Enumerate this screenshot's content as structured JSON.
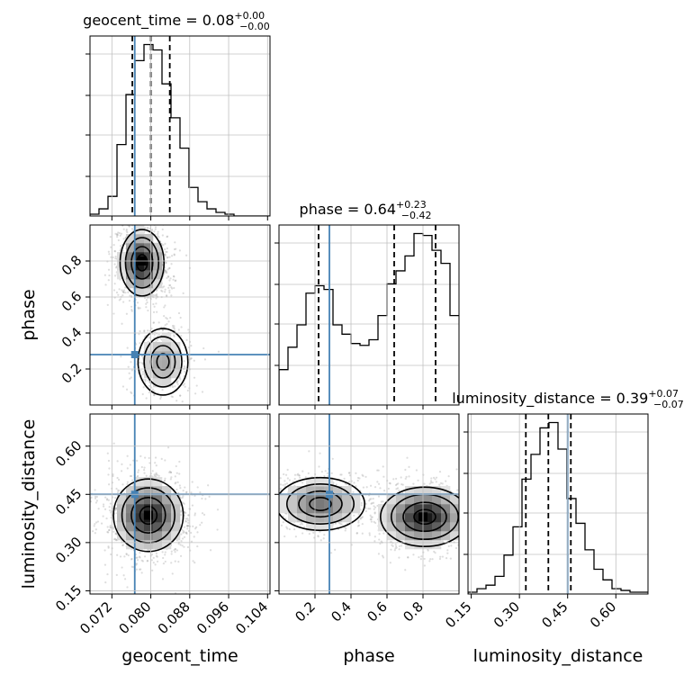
{
  "chart_data": {
    "type": "corner",
    "parameters": [
      {
        "key": "geocent_time",
        "label": "geocent_time",
        "range": [
          0.0675,
          0.1045
        ],
        "ticks": [
          "0.072",
          "0.080",
          "0.088",
          "0.096",
          "0.104"
        ],
        "tick_values": [
          0.072,
          0.08,
          0.088,
          0.096,
          0.104
        ],
        "truth": 0.0767,
        "quantiles": [
          0.0762,
          0.08,
          0.0839
        ]
      },
      {
        "key": "phase",
        "label": "phase",
        "range": [
          0.0,
          1.0
        ],
        "ticks": [
          "0.2",
          "0.4",
          "0.6",
          "0.8"
        ],
        "tick_values": [
          0.2,
          0.4,
          0.6,
          0.8
        ],
        "truth": 0.28,
        "quantiles": [
          0.22,
          0.64,
          0.87
        ]
      },
      {
        "key": "luminosity_distance",
        "label": "luminosity_distance",
        "range": [
          0.14,
          0.7
        ],
        "ticks": [
          "0.15",
          "0.30",
          "0.45",
          "0.60"
        ],
        "tick_values": [
          0.15,
          0.3,
          0.45,
          0.6
        ],
        "truth": 0.45,
        "quantiles": [
          0.32,
          0.39,
          0.46
        ]
      }
    ],
    "titles": [
      {
        "param": "geocent_time",
        "main": "geocent_time = 0.08",
        "sup": "+0.00",
        "sub": "−0.00"
      },
      {
        "param": "phase",
        "main": "phase = 0.64",
        "sup": "+0.23",
        "sub": "−0.42"
      },
      {
        "param": "luminosity_distance",
        "main": "luminosity_distance = 0.39",
        "sup": "+0.07",
        "sub": "−0.07"
      }
    ],
    "histograms": {
      "geocent_time": {
        "edges_start": 0.0675,
        "bin_width": 0.00185,
        "counts": [
          1,
          4,
          11,
          40,
          68,
          87,
          96,
          93,
          74,
          55,
          38,
          16,
          8,
          4,
          2,
          1,
          0,
          0,
          0,
          0
        ]
      },
      "phase": {
        "edges_start": 0.0,
        "bin_width": 0.05,
        "counts": [
          19,
          31,
          43,
          60,
          64,
          62,
          43,
          38,
          33,
          32,
          35,
          48,
          65,
          72,
          80,
          92,
          91,
          83,
          76,
          48
        ]
      },
      "luminosity_distance": {
        "edges_start": 0.14,
        "bin_width": 0.028,
        "counts": [
          1,
          3,
          5,
          10,
          22,
          38,
          65,
          79,
          94,
          97,
          82,
          54,
          40,
          25,
          14,
          8,
          3,
          2,
          1,
          1
        ]
      }
    },
    "joint": {
      "geocent_time|phase": {
        "modes": [
          {
            "center": [
              0.0782,
              0.79
            ],
            "sigma": [
              0.0022,
              0.09
            ],
            "weight": 0.72
          },
          {
            "center": [
              0.0825,
              0.24
            ],
            "sigma": [
              0.0025,
              0.09
            ],
            "weight": 0.28
          }
        ],
        "peak": [
          0.0782,
          0.8
        ]
      },
      "geocent_time|luminosity_distance": {
        "modes": [
          {
            "center": [
              0.0795,
              0.385
            ],
            "sigma": [
              0.0035,
              0.055
            ],
            "weight": 1.0
          }
        ],
        "peak": [
          0.0795,
          0.385
        ]
      },
      "phase|luminosity_distance": {
        "modes": [
          {
            "center": [
              0.23,
              0.42
            ],
            "sigma": [
              0.12,
              0.04
            ],
            "weight": 0.38
          },
          {
            "center": [
              0.81,
              0.38
            ],
            "sigma": [
              0.12,
              0.045
            ],
            "weight": 0.62
          }
        ],
        "peak": [
          0.8,
          0.38
        ]
      }
    },
    "colors": {
      "truth": "#4682b4",
      "hist": "#000000",
      "quantile": "#000000",
      "grid": "#c0c0c0",
      "points": "#9e9e9e"
    },
    "grid": true
  }
}
